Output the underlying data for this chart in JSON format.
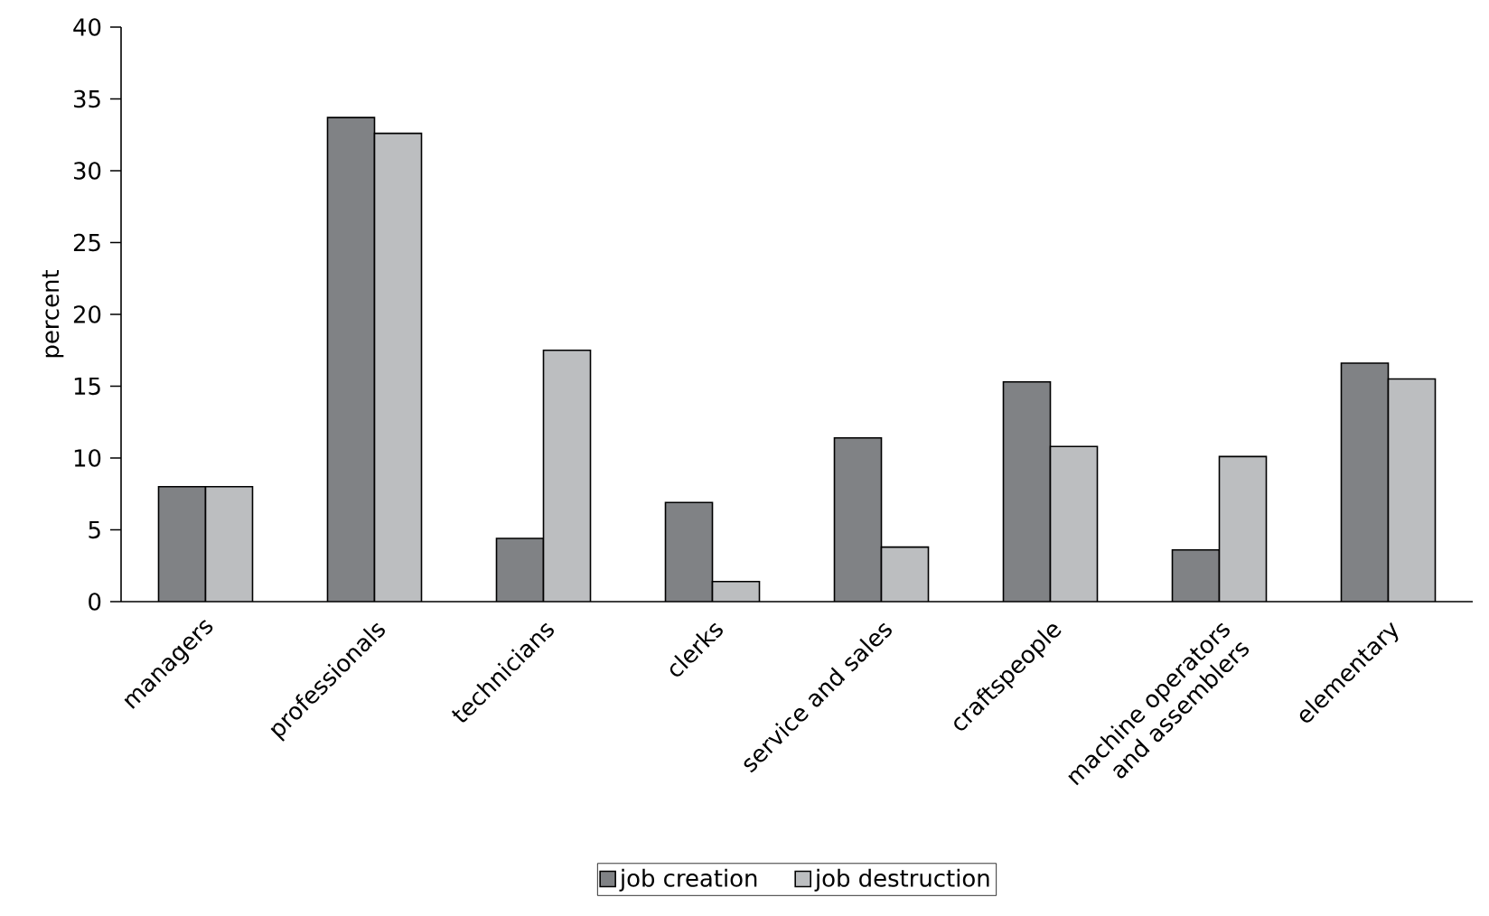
{
  "chart_data": {
    "type": "bar",
    "ylabel": "percent",
    "categories": [
      "managers",
      "professionals",
      "technicians",
      "clerks",
      "service and sales",
      "craftspeople",
      "machine operators and assemblers",
      "elementary"
    ],
    "series": [
      {
        "name": "job creation",
        "color": "#808285",
        "values": [
          8.0,
          33.7,
          4.4,
          6.9,
          11.4,
          15.3,
          3.6,
          16.6
        ]
      },
      {
        "name": "job destruction",
        "color": "#bcbec0",
        "values": [
          8.0,
          32.6,
          17.5,
          1.4,
          3.8,
          10.8,
          10.1,
          15.5
        ]
      }
    ],
    "ylim": [
      0,
      40
    ],
    "yticks": [
      0,
      5,
      10,
      15,
      20,
      25,
      30,
      35,
      40
    ],
    "grid": false,
    "legend": "bottom"
  }
}
